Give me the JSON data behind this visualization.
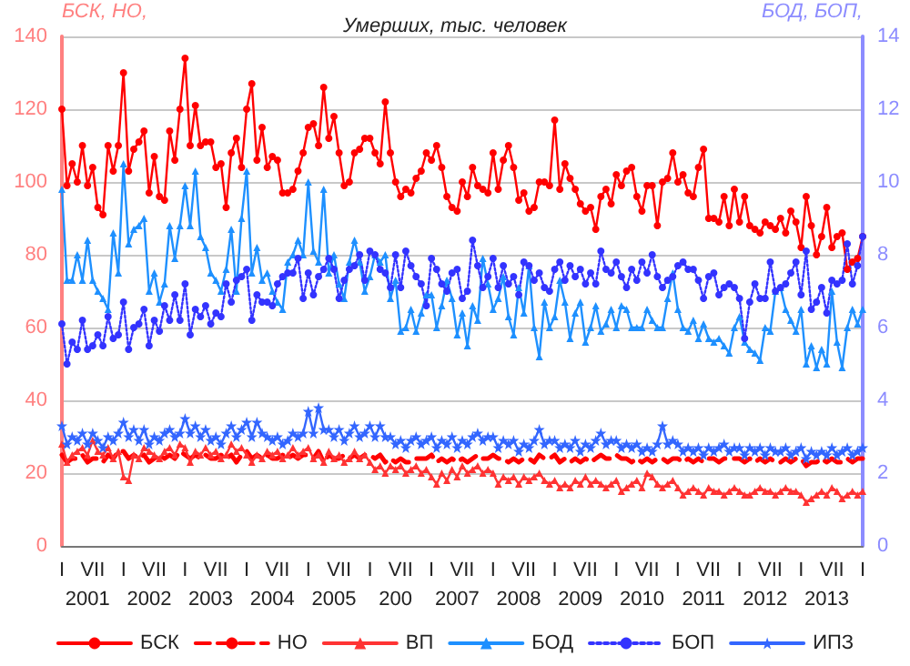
{
  "chart_data": {
    "type": "line",
    "title": "Умерших, тыс. человек",
    "ylabel": "БСК, НО,",
    "y2label": "БОД, БОП,",
    "annotations": [
      "2001",
      "2002",
      "2003",
      "2004",
      "2005",
      "200",
      "2007",
      "2008",
      "2009",
      "2010",
      "2011",
      "2012",
      "2013"
    ],
    "categories": [
      "I",
      null,
      null,
      null,
      null,
      null,
      "VII",
      null,
      null,
      null,
      null,
      null,
      "I",
      null,
      null,
      null,
      null,
      null,
      "VII",
      null,
      null,
      null,
      null,
      null,
      "I",
      null,
      null,
      null,
      null,
      null,
      "VII",
      null,
      null,
      null,
      null,
      null,
      "I",
      null,
      null,
      null,
      null,
      null,
      "VII",
      null,
      null,
      null,
      null,
      null,
      "I",
      null,
      null,
      null,
      null,
      null,
      "VII",
      null,
      null,
      null,
      null,
      null,
      "I",
      null,
      null,
      null,
      null,
      null,
      "VII",
      null,
      null,
      null,
      null,
      null,
      "I",
      null,
      null,
      null,
      null,
      null,
      "VII",
      null,
      null,
      null,
      null,
      null,
      "I",
      null,
      null,
      null,
      null,
      null,
      "VII",
      null,
      null,
      null,
      null,
      null,
      "I",
      null,
      null,
      null,
      null,
      null,
      "VII",
      null,
      null,
      null,
      null,
      null,
      "I",
      null,
      null,
      null,
      null,
      null,
      "VII",
      null,
      null,
      null,
      null,
      null,
      "I",
      null,
      null,
      null,
      null,
      null,
      "VII",
      null,
      null,
      null,
      null,
      null,
      "I",
      null,
      null,
      null,
      null,
      null,
      "VII",
      null,
      null,
      null,
      null,
      null,
      "I",
      null,
      null,
      null,
      null,
      null,
      "VII",
      null,
      null,
      null,
      null,
      null,
      "I"
    ],
    "ylim": [
      0,
      140
    ],
    "yticks": [
      0,
      20,
      40,
      60,
      80,
      100,
      120,
      140
    ],
    "y2lim": [
      0,
      14
    ],
    "y2ticks": [
      0,
      2,
      4,
      6,
      8,
      10,
      12,
      14
    ],
    "grid": "y",
    "legend": "bottom",
    "series": [
      {
        "name": "БСК",
        "color": "#ff0000",
        "marker": "circle",
        "line_style": "solid",
        "values": [
          120,
          99,
          105,
          100,
          110,
          99,
          104,
          93,
          91,
          110,
          103,
          110,
          130,
          103,
          109,
          111,
          114,
          97,
          107,
          96,
          95,
          114,
          106,
          120,
          134,
          110,
          121,
          110,
          111,
          111,
          104,
          105,
          93,
          108,
          112,
          104,
          120,
          127,
          106,
          115,
          104,
          107,
          106,
          97,
          97,
          98,
          103,
          108,
          115,
          116,
          110,
          126,
          112,
          118,
          108,
          99,
          100,
          108,
          109,
          112,
          112,
          108,
          105,
          122,
          108,
          100,
          96,
          98,
          97,
          101,
          103,
          108,
          106,
          110,
          104,
          96,
          93,
          92,
          100,
          96,
          104,
          99,
          98,
          97,
          108,
          98,
          106,
          110,
          104,
          95,
          97,
          92,
          93,
          100,
          100,
          99,
          117,
          98,
          105,
          101,
          98,
          94,
          92,
          93,
          87,
          96,
          98,
          94,
          102,
          99,
          103,
          104,
          96,
          92,
          99,
          99,
          88,
          100,
          101,
          108,
          100,
          102,
          97,
          96,
          104,
          109,
          90,
          90,
          89,
          96,
          88,
          98,
          89,
          96,
          88,
          87,
          86,
          89,
          88,
          87,
          90,
          86,
          92,
          89,
          82,
          96,
          88,
          80,
          85,
          93,
          82,
          85,
          86,
          76,
          78,
          79,
          85
        ]
      },
      {
        "name": "НО",
        "color": "#ff0000",
        "marker": "none",
        "line_style": "dashed",
        "values": [
          25,
          23,
          24,
          24,
          25,
          23,
          24,
          24,
          23,
          25,
          24,
          26,
          26,
          24,
          25,
          24,
          25,
          23,
          24,
          25,
          24,
          25,
          24,
          26,
          25,
          24,
          25,
          24,
          25,
          24,
          24,
          25,
          24,
          25,
          23,
          25,
          26,
          24,
          25,
          24,
          25,
          24,
          24,
          25,
          24,
          25,
          24,
          25,
          25,
          24,
          26,
          23,
          25,
          24,
          24,
          25,
          24,
          25,
          24,
          25,
          25,
          24,
          25,
          23,
          24,
          23,
          24,
          23,
          23,
          24,
          24,
          24,
          25,
          23,
          24,
          23,
          24,
          23,
          24,
          23,
          24,
          25,
          24,
          24,
          25,
          24,
          24,
          23,
          24,
          23,
          24,
          24,
          23,
          25,
          24,
          24,
          25,
          23,
          24,
          23,
          24,
          23,
          24,
          23,
          24,
          25,
          24,
          24,
          25,
          24,
          24,
          23,
          24,
          23,
          24,
          23,
          24,
          24,
          23,
          24,
          24,
          23,
          24,
          23,
          24,
          23,
          24,
          24,
          23,
          24,
          24,
          24,
          24,
          23,
          24,
          23,
          24,
          23,
          24,
          23,
          23,
          24,
          23,
          24,
          24,
          22,
          23,
          23,
          24,
          23,
          24,
          23,
          23,
          24,
          23,
          24,
          24
        ]
      },
      {
        "name": "ВП",
        "color": "#ff3333",
        "marker": "triangle",
        "line_style": "solid",
        "values": [
          28,
          23,
          25,
          26,
          27,
          25,
          29,
          26,
          25,
          27,
          24,
          26,
          19,
          18,
          25,
          24,
          27,
          26,
          25,
          24,
          26,
          27,
          25,
          28,
          27,
          23,
          26,
          25,
          27,
          25,
          26,
          24,
          25,
          28,
          26,
          27,
          25,
          23,
          25,
          24,
          26,
          25,
          26,
          24,
          25,
          27,
          25,
          26,
          27,
          24,
          25,
          23,
          26,
          24,
          25,
          23,
          24,
          26,
          24,
          25,
          23,
          21,
          22,
          20,
          22,
          21,
          22,
          20,
          21,
          22,
          20,
          21,
          19,
          17,
          20,
          18,
          21,
          19,
          22,
          20,
          21,
          22,
          20,
          21,
          20,
          17,
          19,
          18,
          19,
          17,
          19,
          18,
          19,
          20,
          18,
          17,
          18,
          16,
          17,
          16,
          18,
          17,
          19,
          17,
          18,
          17,
          16,
          17,
          18,
          15,
          16,
          17,
          18,
          16,
          20,
          19,
          17,
          16,
          17,
          18,
          16,
          14,
          15,
          16,
          15,
          14,
          16,
          15,
          15,
          14,
          15,
          16,
          15,
          14,
          14,
          15,
          16,
          15,
          15,
          14,
          15,
          16,
          15,
          15,
          14,
          12,
          13,
          14,
          15,
          14,
          16,
          15,
          13,
          14,
          15,
          14,
          15
        ]
      },
      {
        "name": "БОД",
        "color": "#1e90ff",
        "axis": "y2",
        "marker": "triangle",
        "line_style": "solid",
        "values": [
          9.8,
          7.3,
          7.3,
          8.0,
          7.3,
          8.4,
          7.3,
          7.0,
          6.8,
          6.5,
          8.6,
          7.5,
          10.5,
          8.3,
          8.7,
          8.8,
          9.0,
          7.0,
          7.5,
          6.7,
          7.2,
          8.8,
          7.9,
          8.8,
          9.9,
          8.8,
          10.3,
          8.5,
          8.2,
          7.5,
          7.3,
          7.0,
          7.6,
          8.7,
          7.0,
          9.0,
          10.3,
          7.5,
          8.2,
          7.3,
          7.5,
          7.0,
          6.7,
          6.5,
          7.8,
          8.0,
          8.4,
          8.0,
          10.0,
          8.1,
          7.8,
          9.8,
          7.5,
          8.0,
          7.2,
          6.8,
          7.8,
          8.4,
          7.8,
          7.0,
          7.4,
          8.0,
          7.8,
          8.0,
          6.8,
          7.3,
          5.9,
          6.0,
          6.5,
          5.9,
          6.4,
          6.9,
          6.9,
          6.0,
          6.6,
          7.3,
          6.8,
          5.8,
          6.4,
          5.5,
          6.6,
          6.2,
          7.9,
          7.2,
          6.5,
          6.8,
          7.4,
          6.3,
          5.8,
          7.1,
          6.4,
          7.7,
          6.0,
          5.2,
          6.7,
          6.0,
          6.3,
          7.3,
          6.7,
          5.7,
          6.4,
          6.7,
          5.6,
          6.0,
          6.6,
          5.9,
          6.1,
          6.5,
          6.0,
          6.6,
          6.5,
          6.0,
          6.0,
          6.0,
          6.5,
          6.2,
          6.0,
          6.0,
          6.8,
          7.5,
          6.5,
          6.0,
          5.9,
          6.2,
          5.7,
          6.1,
          5.7,
          5.6,
          5.7,
          5.5,
          5.3,
          6.0,
          6.3,
          5.6,
          5.4,
          5.3,
          5.1,
          6.0,
          5.9,
          7.0,
          7.1,
          6.5,
          6.2,
          5.9,
          6.5,
          5.0,
          5.5,
          4.9,
          5.4,
          5.0,
          7.0,
          5.6,
          4.9,
          6.0,
          6.5,
          6.1,
          6.5
        ]
      },
      {
        "name": "БОП",
        "color": "#3333ff",
        "axis": "y2",
        "marker": "circle",
        "line_style": "dotted",
        "values": [
          6.1,
          5.0,
          5.6,
          5.4,
          6.2,
          5.4,
          5.5,
          5.8,
          5.5,
          6.3,
          5.7,
          5.8,
          6.7,
          5.4,
          6.0,
          6.1,
          6.5,
          5.5,
          6.2,
          5.9,
          6.6,
          6.2,
          6.9,
          6.2,
          7.2,
          5.8,
          6.5,
          6.3,
          6.6,
          6.1,
          6.4,
          6.3,
          7.2,
          6.7,
          7.3,
          7.4,
          7.6,
          6.2,
          6.9,
          6.7,
          6.7,
          6.6,
          7.2,
          7.4,
          7.5,
          7.5,
          7.9,
          6.8,
          7.5,
          6.9,
          7.4,
          7.6,
          7.9,
          7.6,
          6.8,
          7.3,
          7.6,
          7.7,
          8.0,
          7.3,
          8.1,
          8.0,
          7.6,
          7.5,
          7.1,
          8.0,
          7.1,
          8.1,
          7.7,
          7.4,
          7.2,
          6.6,
          7.9,
          7.6,
          7.2,
          7.0,
          7.5,
          7.6,
          6.8,
          7.0,
          8.4,
          7.7,
          7.1,
          7.4,
          7.9,
          7.1,
          7.7,
          7.2,
          7.4,
          6.9,
          7.8,
          7.7,
          7.3,
          7.5,
          7.1,
          7.0,
          7.6,
          7.8,
          7.3,
          7.7,
          7.4,
          7.6,
          7.2,
          7.5,
          7.2,
          8.1,
          7.6,
          7.5,
          7.8,
          7.4,
          7.1,
          7.6,
          7.3,
          7.8,
          7.5,
          8.0,
          7.4,
          7.1,
          7.3,
          7.4,
          7.7,
          7.8,
          7.6,
          7.6,
          7.3,
          6.8,
          7.4,
          7.5,
          6.9,
          7.1,
          7.2,
          7.1,
          6.8,
          5.7,
          6.7,
          7.2,
          6.8,
          6.8,
          7.8,
          7.0,
          7.1,
          7.2,
          7.5,
          7.8,
          6.9,
          8.1,
          6.5,
          6.7,
          7.1,
          6.4,
          7.3,
          7.2,
          7.3,
          8.3,
          7.2,
          7.7,
          8.5
        ]
      },
      {
        "name": "ИПЗ",
        "color": "#3366ff",
        "axis": "y2",
        "marker": "star",
        "line_style": "solid",
        "values": [
          3.3,
          2.8,
          3.0,
          2.9,
          3.1,
          2.8,
          3.1,
          2.9,
          2.7,
          3.0,
          2.9,
          3.1,
          3.4,
          3.0,
          3.2,
          2.9,
          3.2,
          2.8,
          3.0,
          2.9,
          3.1,
          3.2,
          3.0,
          3.1,
          3.5,
          3.1,
          3.3,
          3.0,
          3.2,
          2.9,
          3.0,
          2.8,
          3.1,
          3.3,
          3.0,
          3.2,
          3.4,
          3.0,
          3.4,
          3.1,
          3.0,
          2.9,
          3.0,
          2.8,
          2.9,
          3.1,
          3.0,
          3.1,
          3.7,
          3.1,
          3.8,
          3.2,
          3.2,
          3.0,
          3.2,
          2.9,
          3.1,
          3.3,
          3.0,
          3.1,
          3.3,
          3.0,
          3.3,
          3.0,
          3.0,
          2.8,
          2.9,
          2.7,
          2.9,
          3.0,
          2.8,
          2.9,
          3.0,
          2.7,
          2.9,
          2.8,
          3.0,
          2.7,
          2.9,
          2.8,
          3.0,
          3.1,
          2.9,
          3.0,
          3.0,
          2.7,
          2.9,
          2.8,
          2.9,
          2.6,
          2.8,
          2.7,
          2.9,
          3.2,
          2.8,
          2.9,
          2.9,
          2.7,
          2.8,
          2.7,
          2.9,
          2.6,
          2.8,
          2.7,
          2.9,
          3.1,
          2.8,
          2.9,
          2.9,
          2.7,
          2.8,
          2.7,
          2.8,
          2.6,
          2.7,
          2.6,
          2.8,
          3.3,
          2.8,
          2.9,
          2.8,
          2.6,
          2.7,
          2.6,
          2.7,
          2.5,
          2.7,
          2.6,
          2.7,
          2.8,
          2.6,
          2.7,
          2.7,
          2.5,
          2.7,
          2.6,
          2.7,
          2.5,
          2.7,
          2.6,
          2.6,
          2.7,
          2.5,
          2.6,
          2.7,
          2.4,
          2.6,
          2.5,
          2.6,
          2.5,
          2.7,
          2.5,
          2.6,
          2.7,
          2.5,
          2.6,
          2.7
        ]
      }
    ]
  }
}
